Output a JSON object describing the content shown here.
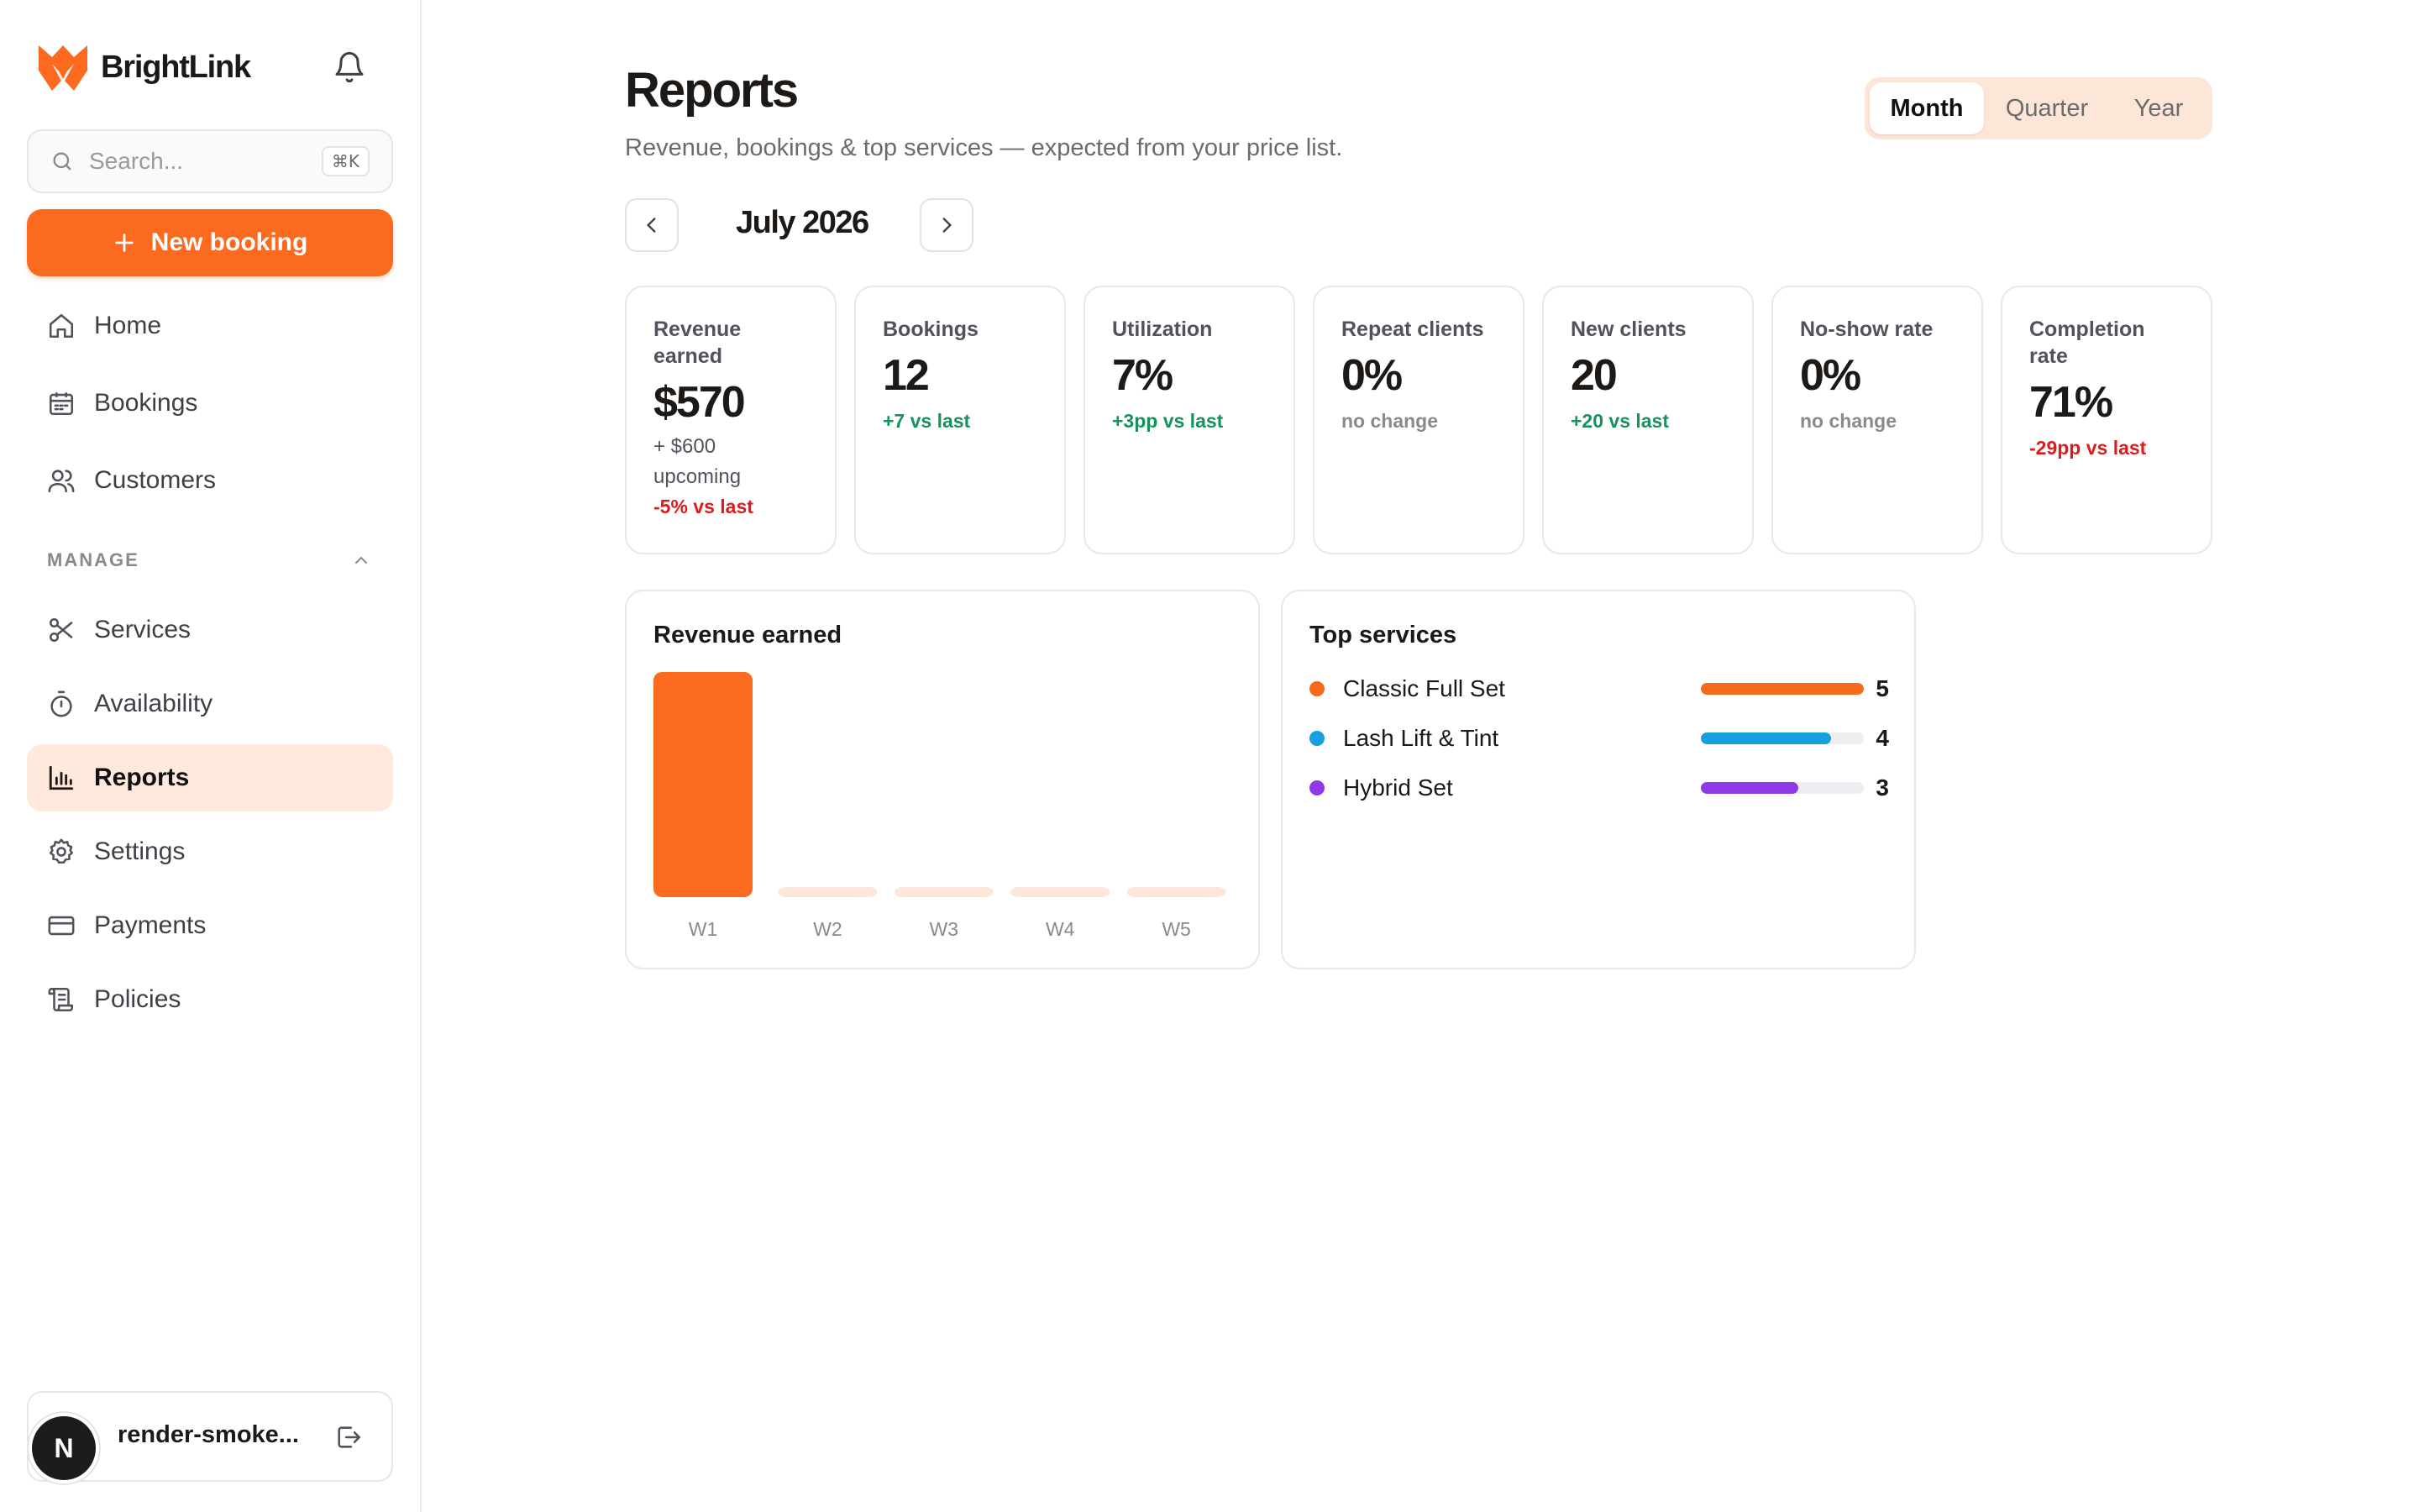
{
  "brand": {
    "name": "BrightLink",
    "color": "#fb6a1f"
  },
  "sidebar": {
    "search_placeholder": "Search...",
    "search_shortcut": "⌘K",
    "new_booking_label": "New booking",
    "items": [
      {
        "label": "Home",
        "icon": "home-icon"
      },
      {
        "label": "Bookings",
        "icon": "calendar-icon"
      },
      {
        "label": "Customers",
        "icon": "users-icon"
      }
    ],
    "manage_label": "MANAGE",
    "manage_items": [
      {
        "label": "Services",
        "icon": "scissors-icon"
      },
      {
        "label": "Availability",
        "icon": "timer-icon"
      },
      {
        "label": "Reports",
        "icon": "bar-chart-icon",
        "active": true
      },
      {
        "label": "Settings",
        "icon": "gear-icon"
      },
      {
        "label": "Payments",
        "icon": "credit-card-icon"
      },
      {
        "label": "Policies",
        "icon": "scroll-icon"
      }
    ],
    "user": {
      "avatar_letter": "N",
      "name": "render-smoke..."
    }
  },
  "header": {
    "title": "Reports",
    "subtitle": "Revenue, bookings & top services — expected from your price list.",
    "periods": [
      "Month",
      "Quarter",
      "Year"
    ],
    "selected_period": "Month",
    "current_month": "July 2026"
  },
  "kpis": [
    {
      "label": "Revenue earned",
      "value": "$570",
      "extra": "+ $600 upcoming",
      "delta": "-5% vs last",
      "trend": "down"
    },
    {
      "label": "Bookings",
      "value": "12",
      "delta": "+7 vs last",
      "trend": "up"
    },
    {
      "label": "Utilization",
      "value": "7%",
      "delta": "+3pp vs last",
      "trend": "up"
    },
    {
      "label": "Repeat clients",
      "value": "0%",
      "delta": "no change",
      "trend": "flat"
    },
    {
      "label": "New clients",
      "value": "20",
      "delta": "+20 vs last",
      "trend": "up"
    },
    {
      "label": "No-show rate",
      "value": "0%",
      "delta": "no change",
      "trend": "flat"
    },
    {
      "label": "Completion rate",
      "value": "71%",
      "delta": "-29pp vs last",
      "trend": "down"
    }
  ],
  "revenue_panel": {
    "title": "Revenue earned"
  },
  "chart_data": {
    "type": "bar",
    "title": "Revenue earned",
    "categories": [
      "W1",
      "W2",
      "W3",
      "W4",
      "W5"
    ],
    "values": [
      570,
      0,
      0,
      0,
      0
    ],
    "bar_color": "#fb6a1f",
    "empty_bar_color": "#fde6da",
    "grid": false
  },
  "top_services": {
    "title": "Top services",
    "items": [
      {
        "name": "Classic Full Set",
        "count": 5,
        "fraction": 1.0,
        "color": "#f76a1c"
      },
      {
        "name": "Lash Lift & Tint",
        "count": 4,
        "fraction": 0.8,
        "color": "#17a0de"
      },
      {
        "name": "Hybrid Set",
        "count": 3,
        "fraction": 0.6,
        "color": "#8f3ae6"
      }
    ]
  }
}
